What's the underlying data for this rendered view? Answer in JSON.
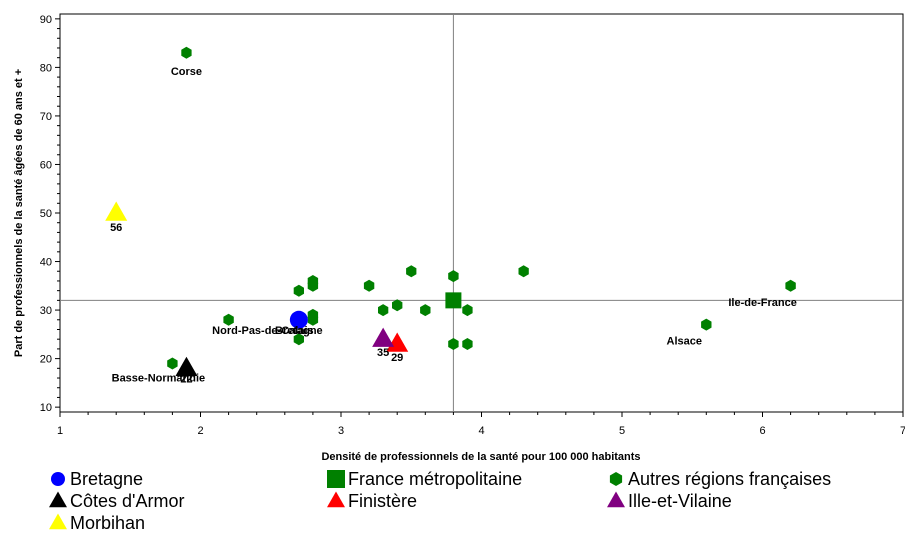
{
  "chart_data": {
    "type": "scatter",
    "xlabel": "Densité de professionnels de la santé pour 100 000 habitants",
    "ylabel": "Part de professionnels de la santé âgées de 60 ans et +",
    "xlim": [
      1,
      7
    ],
    "ylim": [
      9,
      91
    ],
    "xticks": [
      1,
      2,
      3,
      4,
      5,
      6,
      7
    ],
    "yticks": [
      10,
      20,
      30,
      40,
      50,
      60,
      70,
      80,
      90
    ],
    "reference_lines": {
      "x": 3.8,
      "y": 32
    },
    "legend_position": "bottom",
    "series": [
      {
        "name": "Bretagne",
        "marker": "circle",
        "color": "#0000ff",
        "points": [
          {
            "x": 2.7,
            "y": 28,
            "label": "Bretagne"
          }
        ]
      },
      {
        "name": "France métropolitaine",
        "marker": "square",
        "color": "#008000",
        "points": [
          {
            "x": 3.8,
            "y": 32,
            "label": ""
          }
        ]
      },
      {
        "name": "Autres régions françaises",
        "marker": "hexagon",
        "color": "#008000",
        "points": [
          {
            "x": 1.9,
            "y": 83,
            "label": "Corse"
          },
          {
            "x": 1.8,
            "y": 19,
            "label": "Basse-Normandie"
          },
          {
            "x": 2.2,
            "y": 28,
            "label": ""
          },
          {
            "x": 2.7,
            "y": 34,
            "label": ""
          },
          {
            "x": 2.7,
            "y": 24,
            "label": ""
          },
          {
            "x": 2.8,
            "y": 36,
            "label": ""
          },
          {
            "x": 2.8,
            "y": 35,
            "label": ""
          },
          {
            "x": 2.8,
            "y": 29,
            "label": ""
          },
          {
            "x": 2.8,
            "y": 28,
            "label": "Nord-Pas-de-Calais"
          },
          {
            "x": 3.2,
            "y": 35,
            "label": ""
          },
          {
            "x": 3.3,
            "y": 30,
            "label": ""
          },
          {
            "x": 3.4,
            "y": 31,
            "label": ""
          },
          {
            "x": 3.5,
            "y": 38,
            "label": ""
          },
          {
            "x": 3.6,
            "y": 30,
            "label": ""
          },
          {
            "x": 3.8,
            "y": 37,
            "label": ""
          },
          {
            "x": 3.8,
            "y": 23,
            "label": ""
          },
          {
            "x": 3.9,
            "y": 30,
            "label": ""
          },
          {
            "x": 3.9,
            "y": 23,
            "label": ""
          },
          {
            "x": 4.3,
            "y": 38,
            "label": ""
          },
          {
            "x": 5.6,
            "y": 27,
            "label": "Alsace"
          },
          {
            "x": 6.2,
            "y": 35,
            "label": "Ile-de-France"
          }
        ]
      },
      {
        "name": "Côtes d'Armor",
        "marker": "triangle",
        "color": "#000000",
        "points": [
          {
            "x": 1.9,
            "y": 18,
            "label": "22"
          }
        ]
      },
      {
        "name": "Finistère",
        "marker": "triangle",
        "color": "#ff0000",
        "points": [
          {
            "x": 3.4,
            "y": 23,
            "label": "29"
          }
        ]
      },
      {
        "name": "Ille-et-Vilaine",
        "marker": "triangle",
        "color": "#800080",
        "points": [
          {
            "x": 3.3,
            "y": 24,
            "label": "35"
          }
        ]
      },
      {
        "name": "Morbihan",
        "marker": "triangle",
        "color": "#ffff00",
        "points": [
          {
            "x": 1.4,
            "y": 50,
            "label": "56"
          }
        ]
      }
    ]
  }
}
